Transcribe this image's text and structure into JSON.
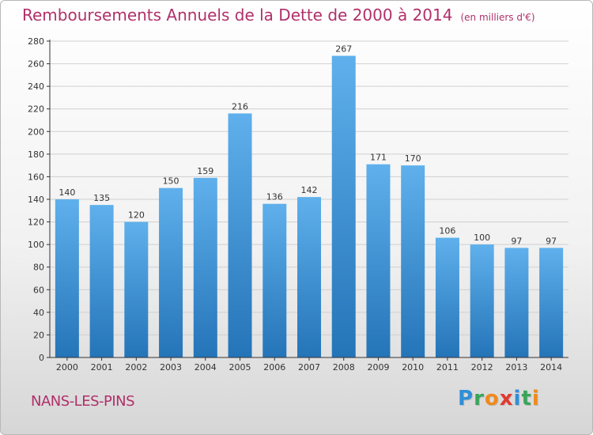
{
  "header": {
    "title": "Remboursements Annuels de la Dette de 2000 à 2014",
    "subtitle": "(en milliers d'€)"
  },
  "footer": {
    "commune": "NANS-LES-PINS",
    "logo_letters": [
      "P",
      "r",
      "o",
      "x",
      "i",
      "t",
      "i"
    ],
    "logo_colors": [
      "#2f8fd8",
      "#3aa55a",
      "#f08a1c",
      "#e23a2e",
      "#2f8fd8",
      "#3aa55a",
      "#f08a1c"
    ]
  },
  "colors": {
    "bar_top": "#5fb0ec",
    "bar_bottom": "#2474b8",
    "axis": "#333333",
    "grid": "#d0d0d0",
    "text": "#333333"
  },
  "chart_data": {
    "type": "bar",
    "categories": [
      "2000",
      "2001",
      "2002",
      "2003",
      "2004",
      "2005",
      "2006",
      "2007",
      "2008",
      "2009",
      "2010",
      "2011",
      "2012",
      "2013",
      "2014"
    ],
    "values": [
      140,
      135,
      120,
      150,
      159,
      216,
      136,
      142,
      267,
      171,
      170,
      106,
      100,
      97,
      97
    ],
    "data_labels": [
      "140",
      "135",
      "120",
      "150",
      "159",
      "216",
      "136",
      "142",
      "267",
      "171",
      "170",
      "106",
      "100",
      "97",
      "97"
    ],
    "ylim": [
      0,
      280
    ],
    "yticks": [
      0,
      20,
      40,
      60,
      80,
      100,
      120,
      140,
      160,
      180,
      200,
      220,
      240,
      260,
      280
    ],
    "grid": true
  }
}
